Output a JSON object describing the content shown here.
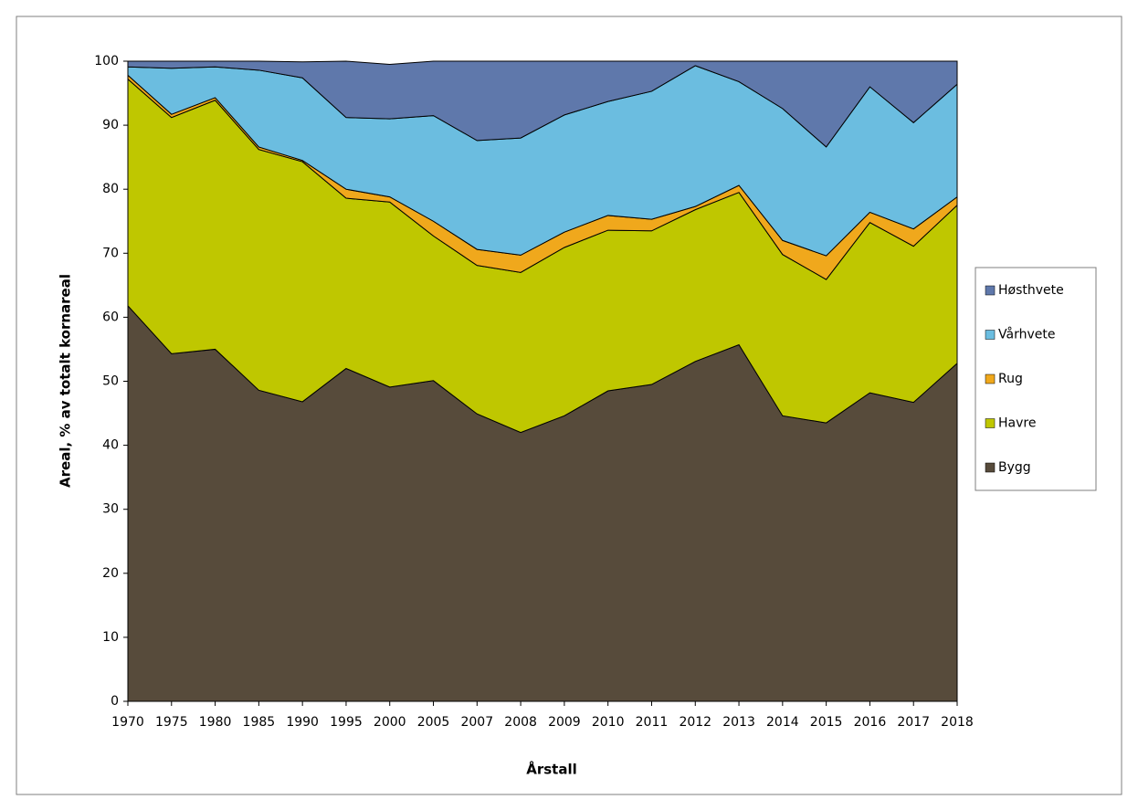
{
  "chart_data": {
    "type": "stacked-area",
    "y_label": "Areal, % av totalt kornareal",
    "x_label": "Årstall",
    "categories": [
      "1970",
      "1975",
      "1980",
      "1985",
      "1990",
      "1995",
      "2000",
      "2005",
      "2007",
      "2008",
      "2009",
      "2010",
      "2011",
      "2012",
      "2013",
      "2014",
      "2015",
      "2016",
      "2017",
      "2018"
    ],
    "series": [
      {
        "name": "Bygg",
        "color": "#574b3b",
        "values": [
          61.8,
          54.3,
          55.0,
          48.6,
          46.8,
          52.0,
          49.1,
          50.1,
          44.9,
          42.0,
          44.6,
          48.5,
          49.5,
          53.1,
          55.7,
          44.6,
          43.5,
          48.2,
          46.7,
          52.8
        ]
      },
      {
        "name": "Havre",
        "color": "#bfc700",
        "values": [
          35.4,
          36.9,
          38.9,
          37.6,
          37.5,
          26.6,
          28.9,
          22.6,
          23.2,
          25.0,
          26.3,
          25.1,
          24.0,
          23.7,
          23.8,
          25.2,
          22.4,
          26.6,
          24.4,
          24.7
        ]
      },
      {
        "name": "Rug",
        "color": "#f0a81c",
        "values": [
          0.6,
          0.5,
          0.4,
          0.4,
          0.2,
          1.4,
          0.8,
          2.3,
          2.5,
          2.7,
          2.4,
          2.3,
          1.8,
          0.5,
          1.1,
          2.2,
          3.7,
          1.6,
          2.7,
          1.3
        ]
      },
      {
        "name": "Vårhvete",
        "color": "#6bbde0",
        "values": [
          1.3,
          7.2,
          4.8,
          12.0,
          12.9,
          11.2,
          12.2,
          16.5,
          17.0,
          18.3,
          18.3,
          17.8,
          20.0,
          22.0,
          16.2,
          20.6,
          17.0,
          19.6,
          16.6,
          17.6
        ]
      },
      {
        "name": "Høsthvete",
        "color": "#5f78ab",
        "values": [
          0.9,
          1.1,
          0.9,
          1.4,
          2.5,
          8.8,
          8.5,
          8.5,
          12.4,
          12.0,
          8.4,
          6.3,
          4.7,
          0.7,
          3.2,
          7.4,
          13.4,
          4.0,
          9.6,
          3.6
        ]
      }
    ],
    "ylim": [
      0,
      100
    ],
    "yticks": [
      0,
      10,
      20,
      30,
      40,
      50,
      60,
      70,
      80,
      90,
      100
    ],
    "grid": false,
    "legend": "right"
  }
}
